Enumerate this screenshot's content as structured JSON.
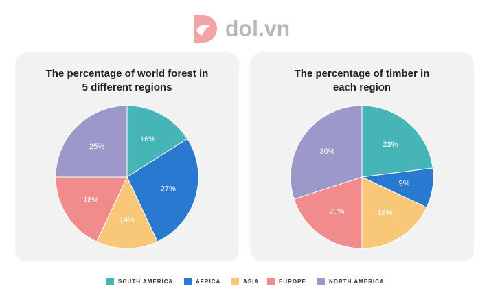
{
  "logo": "dol.vn",
  "chart_data": [
    {
      "type": "pie",
      "title": [
        "The percentage of world forest in",
        "5 different regions"
      ],
      "categories": [
        "SOUTH AMERICA",
        "AFRICA",
        "ASIA",
        "EUROPE",
        "NORTH AMERICA"
      ],
      "values": [
        16,
        27,
        14,
        18,
        25
      ],
      "value_labels": [
        "16%",
        "27%",
        "14%",
        "18%",
        "25%"
      ],
      "colors": [
        "#45b5b8",
        "#2a79d0",
        "#f8c778",
        "#f28c8c",
        "#9c98c9"
      ]
    },
    {
      "type": "pie",
      "title": [
        "The percentage of timber in",
        "each region"
      ],
      "categories": [
        "SOUTH AMERICA",
        "AFRICA",
        "ASIA",
        "EUROPE",
        "NORTH AMERICA"
      ],
      "values": [
        23,
        9,
        18,
        20,
        30
      ],
      "value_labels": [
        "23%",
        "9%",
        "18%",
        "20%",
        "30%"
      ],
      "colors": [
        "#45b5b8",
        "#2a79d0",
        "#f8c778",
        "#f28c8c",
        "#9c98c9"
      ]
    }
  ]
}
